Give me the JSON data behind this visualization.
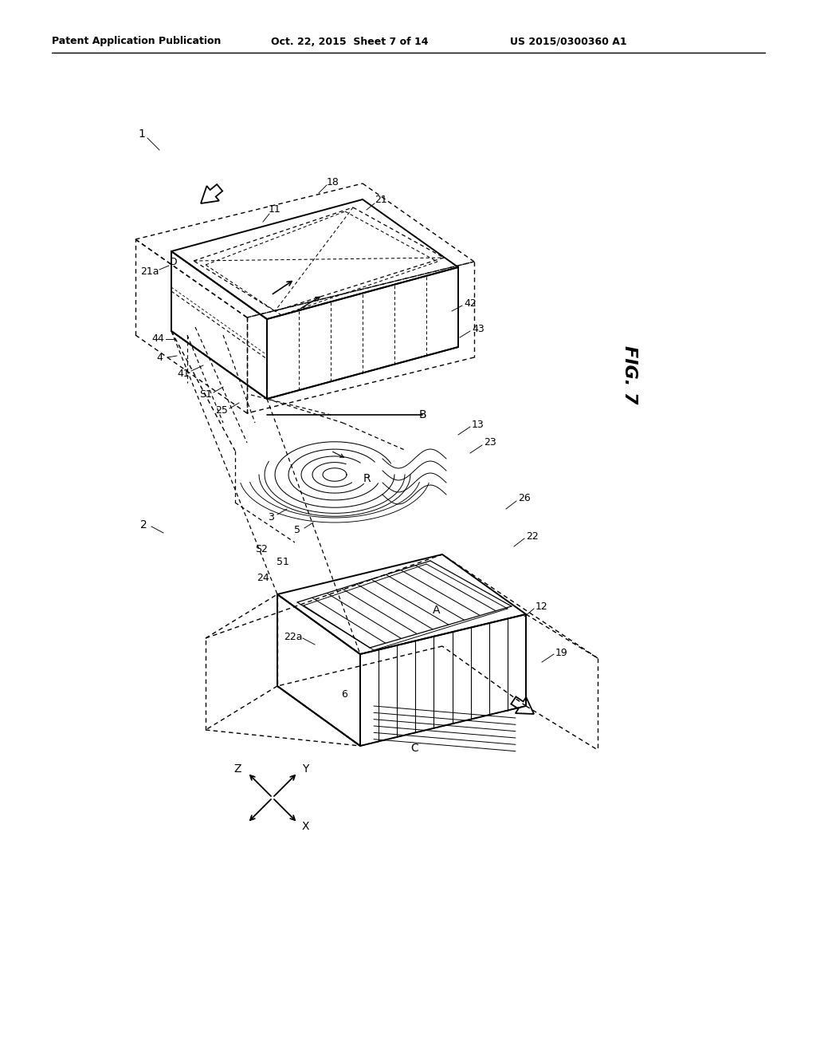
{
  "bg_color": "#ffffff",
  "header_left": "Patent Application Publication",
  "header_mid": "Oct. 22, 2015  Sheet 7 of 14",
  "header_right": "US 2015/0300360 A1",
  "fig_label": "FIG. 7"
}
